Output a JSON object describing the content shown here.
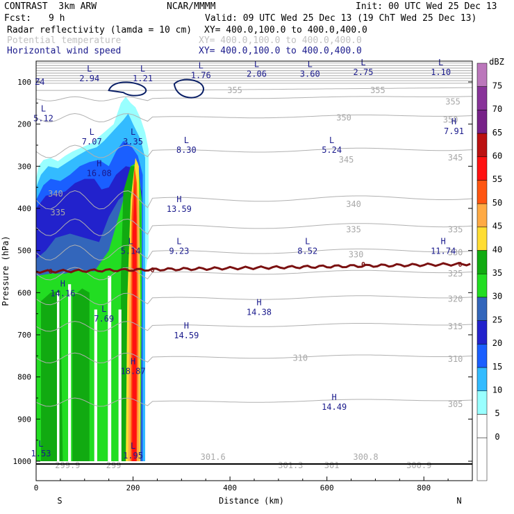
{
  "header": {
    "title_left": "CONTRAST  3km ARW",
    "org": "NCAR/MMMM",
    "init": "Init: 00 UTC Wed 25 Dec 13",
    "fcst_label": "Fcst:",
    "fcst_value": "9 h",
    "valid": "Valid: 09 UTC Wed 25 Dec 13 (19 ChT Wed 25 Dec 13)",
    "line1_field": "Radar reflectivity (lamda = 10 cm)",
    "line1_xy": "XY= 400.0,100.0 to 400.0,400.0",
    "line2_field": "Potential temperature",
    "line2_xy": "XY= 400.0,100.0 to 400.0,400.0",
    "line3_field": "Horizontal wind speed",
    "line3_xy": "XY= 400.0,100.0 to 400.0,400.0"
  },
  "chart_data": {
    "type": "heatmap",
    "xlabel": "Distance (km)",
    "ylabel": "Pressure (hPa)",
    "x_ticks": [
      "0",
      "200",
      "400",
      "600",
      "800"
    ],
    "y_ticks": [
      "100",
      "200",
      "300",
      "400",
      "500",
      "600",
      "700",
      "800",
      "900",
      "1000"
    ],
    "x_left_label": "S",
    "x_right_label": "N",
    "xlim": [
      0,
      900
    ],
    "ylim": [
      1000,
      50
    ],
    "colorbar": {
      "unit": "dBZ",
      "levels": [
        "0",
        "5",
        "10",
        "15",
        "20",
        "25",
        "30",
        "35",
        "40",
        "45",
        "50",
        "55",
        "60",
        "65",
        "70",
        "75"
      ],
      "colors": [
        "#ffffff",
        "#99ffff",
        "#33bbff",
        "#1a5fff",
        "#2222cc",
        "#3366bb",
        "#22dd22",
        "#11aa11",
        "#ffdd33",
        "#ffaa44",
        "#ff5511",
        "#ff1111",
        "#bb1111",
        "#772288",
        "#883399",
        "#bb77bb"
      ]
    },
    "theta_labels": [
      {
        "text": "355",
        "x": 410,
        "p": 120
      },
      {
        "text": "355",
        "x": 705,
        "p": 120
      },
      {
        "text": "355",
        "x": 860,
        "p": 147
      },
      {
        "text": "350",
        "x": 635,
        "p": 185
      },
      {
        "text": "350",
        "x": 855,
        "p": 190
      },
      {
        "text": "345",
        "x": 640,
        "p": 285
      },
      {
        "text": "345",
        "x": 865,
        "p": 280
      },
      {
        "text": "340",
        "x": 40,
        "p": 365
      },
      {
        "text": "340",
        "x": 655,
        "p": 390
      },
      {
        "text": "335",
        "x": 45,
        "p": 410
      },
      {
        "text": "335",
        "x": 655,
        "p": 450
      },
      {
        "text": "335",
        "x": 865,
        "p": 450
      },
      {
        "text": "330",
        "x": 660,
        "p": 510
      },
      {
        "text": "330",
        "x": 865,
        "p": 505
      },
      {
        "text": "325",
        "x": 865,
        "p": 555
      },
      {
        "text": "320",
        "x": 865,
        "p": 615
      },
      {
        "text": "315",
        "x": 865,
        "p": 680
      },
      {
        "text": "310",
        "x": 545,
        "p": 755
      },
      {
        "text": "310",
        "x": 865,
        "p": 758
      },
      {
        "text": "305",
        "x": 865,
        "p": 865
      },
      {
        "text": "301.6",
        "x": 365,
        "p": 990
      },
      {
        "text": "301.3",
        "x": 525,
        "p": 1010
      },
      {
        "text": "301",
        "x": 610,
        "p": 1010
      },
      {
        "text": "300.8",
        "x": 680,
        "p": 990
      },
      {
        "text": "300.9",
        "x": 790,
        "p": 1010
      },
      {
        "text": "299.9",
        "x": 65,
        "p": 1010
      },
      {
        "text": "299",
        "x": 160,
        "p": 1010
      }
    ],
    "wind_extrema": [
      {
        "kind": "L",
        "value": "2.94",
        "x": 110,
        "p": 95
      },
      {
        "kind": "L",
        "value": "1.21",
        "x": 220,
        "p": 95
      },
      {
        "kind": "L",
        "value": "1.76",
        "x": 340,
        "p": 88
      },
      {
        "kind": "L",
        "value": "2.06",
        "x": 455,
        "p": 84
      },
      {
        "kind": "L",
        "value": "3.60",
        "x": 565,
        "p": 84
      },
      {
        "kind": "L",
        "value": "2.75",
        "x": 675,
        "p": 80
      },
      {
        "kind": "L",
        "value": "1.10",
        "x": 835,
        "p": 80
      },
      {
        "kind": "L",
        "value": "5.12",
        "x": 15,
        "p": 190
      },
      {
        "kind": "L",
        "value": "7.07",
        "x": 115,
        "p": 245
      },
      {
        "kind": "L",
        "value": "3.35",
        "x": 200,
        "p": 245
      },
      {
        "kind": "H",
        "value": "7.91",
        "x": 862,
        "p": 220
      },
      {
        "kind": "L",
        "value": "8.30",
        "x": 310,
        "p": 265
      },
      {
        "kind": "L",
        "value": "5.24",
        "x": 610,
        "p": 265
      },
      {
        "kind": "H",
        "value": "16.08",
        "x": 130,
        "p": 320
      },
      {
        "kind": "H",
        "value": "13.59",
        "x": 295,
        "p": 405
      },
      {
        "kind": "L",
        "value": "5.14",
        "x": 195,
        "p": 505
      },
      {
        "kind": "L",
        "value": "9.23",
        "x": 295,
        "p": 505
      },
      {
        "kind": "L",
        "value": "8.52",
        "x": 560,
        "p": 505
      },
      {
        "kind": "H",
        "value": "11.74",
        "x": 840,
        "p": 505
      },
      {
        "kind": "H",
        "value": "14.16",
        "x": 55,
        "p": 605
      },
      {
        "kind": "L",
        "value": "7.69",
        "x": 140,
        "p": 665
      },
      {
        "kind": "H",
        "value": "14.38",
        "x": 460,
        "p": 650
      },
      {
        "kind": "H",
        "value": "14.59",
        "x": 310,
        "p": 705
      },
      {
        "kind": "H",
        "value": "18.87",
        "x": 200,
        "p": 790
      },
      {
        "kind": "H",
        "value": "14.49",
        "x": 615,
        "p": 875
      },
      {
        "kind": "L",
        "value": "1.53",
        "x": 10,
        "p": 985
      },
      {
        "kind": "L",
        "value": "1.95",
        "x": 200,
        "p": 990
      }
    ],
    "zero_line_label": "0",
    "upper_left_fragment": "Z4"
  }
}
